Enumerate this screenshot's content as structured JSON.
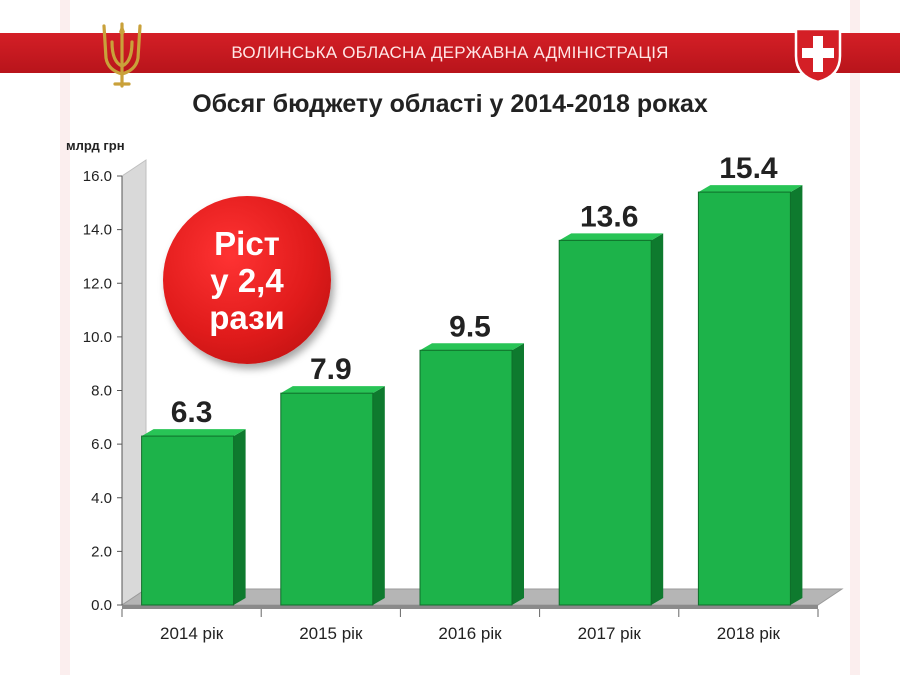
{
  "header": {
    "org_name": "ВОЛИНСЬКА ОБЛАСНА ДЕРЖАВНА АДМІНІСТРАЦІЯ",
    "logo_left": "trident-emblem",
    "logo_right": "volyn-coat-of-arms",
    "band_color": "#c8181f"
  },
  "badge": {
    "line1": "Ріст",
    "line2": "у 2,4",
    "line3": "рази",
    "color": "#e01b1b"
  },
  "chart_data": {
    "type": "bar",
    "title": "Обсяг бюджету області у 2014-2018 роках",
    "ylabel": "млрд грн",
    "xlabel": "",
    "categories": [
      "2014 рік",
      "2015 рік",
      "2016 рік",
      "2017 рік",
      "2018 рік"
    ],
    "values": [
      6.3,
      7.9,
      9.5,
      13.6,
      15.4
    ],
    "value_labels": [
      "6.3",
      "7.9",
      "9.5",
      "13.6",
      "15.4"
    ],
    "yticks": [
      "0.0",
      "2.0",
      "4.0",
      "6.0",
      "8.0",
      "10.0",
      "12.0",
      "14.0",
      "16.0"
    ],
    "ylim": [
      0,
      16
    ],
    "grid": false,
    "legend": "none",
    "bar_color": "#1db34a"
  }
}
